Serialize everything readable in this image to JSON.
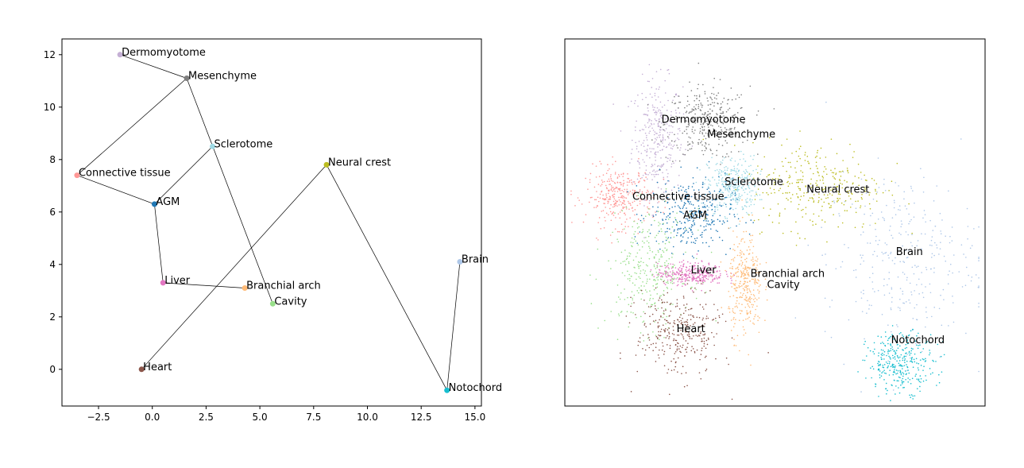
{
  "chart_data": [
    {
      "type": "scatter",
      "title": "",
      "xlabel": "",
      "ylabel": "",
      "xlim": [
        -4.2,
        15.3
      ],
      "ylim": [
        -1.4,
        12.6
      ],
      "x_ticks": [
        -2.5,
        0.0,
        2.5,
        5.0,
        7.5,
        10.0,
        12.5,
        15.0
      ],
      "x_tick_labels": [
        "−2.5",
        "0.0",
        "2.5",
        "5.0",
        "7.5",
        "10.0",
        "12.5",
        "15.0"
      ],
      "y_ticks": [
        0,
        2,
        4,
        6,
        8,
        10,
        12
      ],
      "y_tick_labels": [
        "0",
        "2",
        "4",
        "6",
        "8",
        "10",
        "12"
      ],
      "grid": false,
      "nodes": [
        {
          "label": "Dermomyotome",
          "x": -1.5,
          "y": 12.0,
          "color": "#c5b0d5"
        },
        {
          "label": "Mesenchyme",
          "x": 1.6,
          "y": 11.1,
          "color": "#7f7f7f"
        },
        {
          "label": "Sclerotome",
          "x": 2.8,
          "y": 8.5,
          "color": "#9edae5"
        },
        {
          "label": "Connective tissue",
          "x": -3.5,
          "y": 7.4,
          "color": "#ff9896"
        },
        {
          "label": "AGM",
          "x": 0.1,
          "y": 6.3,
          "color": "#1f77b4"
        },
        {
          "label": "Neural crest",
          "x": 8.1,
          "y": 7.8,
          "color": "#bcbd22"
        },
        {
          "label": "Brain",
          "x": 14.3,
          "y": 4.1,
          "color": "#aec7e8"
        },
        {
          "label": "Liver",
          "x": 0.5,
          "y": 3.3,
          "color": "#e377c2"
        },
        {
          "label": "Branchial arch",
          "x": 4.3,
          "y": 3.1,
          "color": "#ffbb78"
        },
        {
          "label": "Cavity",
          "x": 5.6,
          "y": 2.5,
          "color": "#98df8a"
        },
        {
          "label": "Heart",
          "x": -0.5,
          "y": 0.0,
          "color": "#8c564b"
        },
        {
          "label": "Notochord",
          "x": 13.7,
          "y": -0.8,
          "color": "#17becf"
        }
      ],
      "edges": [
        [
          "Dermomyotome",
          "Mesenchyme"
        ],
        [
          "Mesenchyme",
          "Connective tissue"
        ],
        [
          "Mesenchyme",
          "Cavity"
        ],
        [
          "Connective tissue",
          "AGM"
        ],
        [
          "AGM",
          "Sclerotome"
        ],
        [
          "AGM",
          "Liver"
        ],
        [
          "Liver",
          "Branchial arch"
        ],
        [
          "Heart",
          "Neural crest"
        ],
        [
          "Neural crest",
          "Notochord"
        ],
        [
          "Notochord",
          "Brain"
        ]
      ]
    },
    {
      "type": "scatter",
      "title": "",
      "xlabel": "",
      "ylabel": "",
      "xlim": [
        0,
        1
      ],
      "ylim": [
        0,
        1
      ],
      "axis_ticks": false,
      "clusters": [
        {
          "label": "Dermomyotome",
          "color": "#c5b0d5",
          "cx": 0.22,
          "cy": 0.73,
          "sx": 0.03,
          "sy": 0.08
        },
        {
          "label": "Mesenchyme",
          "color": "#7f7f7f",
          "cx": 0.34,
          "cy": 0.77,
          "sx": 0.05,
          "sy": 0.05
        },
        {
          "label": "Sclerotome",
          "color": "#9edae5",
          "cx": 0.4,
          "cy": 0.6,
          "sx": 0.03,
          "sy": 0.04
        },
        {
          "label": "Connective tissue",
          "color": "#ff9896",
          "cx": 0.13,
          "cy": 0.57,
          "sx": 0.04,
          "sy": 0.04
        },
        {
          "label": "AGM",
          "color": "#1f77b4",
          "cx": 0.3,
          "cy": 0.52,
          "sx": 0.05,
          "sy": 0.05
        },
        {
          "label": "Neural crest",
          "color": "#bcbd22",
          "cx": 0.6,
          "cy": 0.6,
          "sx": 0.08,
          "sy": 0.06
        },
        {
          "label": "Brain",
          "color": "#aec7e8",
          "cx": 0.8,
          "cy": 0.4,
          "sx": 0.09,
          "sy": 0.12
        },
        {
          "label": "Liver",
          "color": "#e377c2",
          "cx": 0.3,
          "cy": 0.36,
          "sx": 0.04,
          "sy": 0.015
        },
        {
          "label": "Branchial arch",
          "color": "#ffbb78",
          "cx": 0.43,
          "cy": 0.33,
          "sx": 0.02,
          "sy": 0.07
        },
        {
          "label": "Cavity",
          "color": "#98df8a",
          "cx": 0.2,
          "cy": 0.37,
          "sx": 0.05,
          "sy": 0.08
        },
        {
          "label": "Heart",
          "color": "#8c564b",
          "cx": 0.27,
          "cy": 0.2,
          "sx": 0.05,
          "sy": 0.06
        },
        {
          "label": "Notochord",
          "color": "#17becf",
          "cx": 0.8,
          "cy": 0.12,
          "sx": 0.04,
          "sy": 0.04
        }
      ],
      "labels": [
        {
          "label": "Dermomyotome",
          "x": 0.33,
          "y": 0.78
        },
        {
          "label": "Mesenchyme",
          "x": 0.42,
          "y": 0.74
        },
        {
          "label": "Sclerotome",
          "x": 0.45,
          "y": 0.61
        },
        {
          "label": "Connective tissue",
          "x": 0.27,
          "y": 0.57
        },
        {
          "label": "AGM",
          "x": 0.31,
          "y": 0.52
        },
        {
          "label": "Neural crest",
          "x": 0.65,
          "y": 0.59
        },
        {
          "label": "Brain",
          "x": 0.82,
          "y": 0.42
        },
        {
          "label": "Liver",
          "x": 0.33,
          "y": 0.37
        },
        {
          "label": "Branchial arch",
          "x": 0.53,
          "y": 0.36
        },
        {
          "label": "Cavity",
          "x": 0.52,
          "y": 0.33
        },
        {
          "label": "Heart",
          "x": 0.3,
          "y": 0.21
        },
        {
          "label": "Notochord",
          "x": 0.84,
          "y": 0.18
        }
      ]
    }
  ]
}
